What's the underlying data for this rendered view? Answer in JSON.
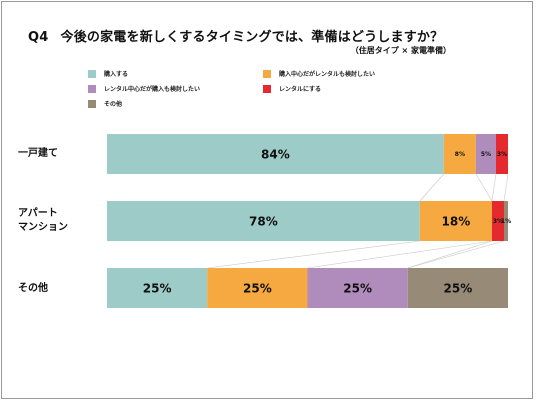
{
  "title_q": "Q4",
  "title_text": "今後の家電を新しくするタイミングでは、準備はどうしますか？",
  "subtitle": "（住居タイプ × 家電準備）",
  "colors": {
    "buy": "#9ccbc8",
    "rental_buy_consider": "#f5a940",
    "buy_rental_consider": "#b08cbc",
    "rental": "#e42a2e",
    "other": "#978a76"
  },
  "chart_data": {
    "type": "bar",
    "orientation": "horizontal",
    "stacked": "100%",
    "title": "今後の家電を新しくするタイミングでは、準備はどうしますか？",
    "subtitle": "（住居タイプ × 家電準備）",
    "categories": [
      "一戸建て",
      "アパート\nマンション",
      "その他"
    ],
    "series": [
      {
        "name": "購入する",
        "color": "#9ccbc8",
        "values": [
          84,
          78,
          25
        ],
        "labels": [
          "84%",
          "78%",
          "25%"
        ]
      },
      {
        "name": "購入中心だがレンタルも検討したい",
        "color": "#f5a940",
        "values": [
          8,
          18,
          25
        ],
        "labels": [
          "8%",
          "18%",
          "25%"
        ]
      },
      {
        "name": "レンタル中心だが購入も検討したい",
        "color": "#b08cbc",
        "values": [
          5,
          0,
          25
        ],
        "labels": [
          "5%",
          "",
          "25%"
        ]
      },
      {
        "name": "レンタルにする",
        "color": "#e42a2e",
        "values": [
          3,
          3,
          0
        ],
        "labels": [
          "3%",
          "3%",
          ""
        ]
      },
      {
        "name": "その他",
        "color": "#978a76",
        "values": [
          0,
          1,
          25
        ],
        "labels": [
          "",
          "1%",
          "25%"
        ]
      }
    ],
    "legend_placement": "top"
  }
}
